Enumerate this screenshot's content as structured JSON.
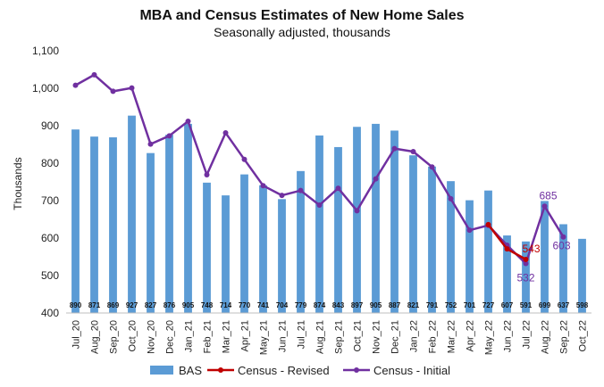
{
  "chart_data": {
    "type": "bar",
    "title": "MBA and Census Estimates of New Home Sales",
    "subtitle": "Seasonally adjusted, thousands",
    "ylabel": "Thousands",
    "xlabel": "",
    "ylim": [
      400,
      1100
    ],
    "yticks": [
      "400",
      "500",
      "600",
      "700",
      "800",
      "900",
      "1,000",
      "1,100"
    ],
    "grid": false,
    "legend_position": "bottom",
    "categories": [
      "Jul_20",
      "Aug_20",
      "Sep_20",
      "Oct_20",
      "Nov_20",
      "Dec_20",
      "Jan_21",
      "Feb_21",
      "Mar_21",
      "Apr_21",
      "May_21",
      "Jun_21",
      "Jul_21",
      "Aug_21",
      "Sep_21",
      "Oct_21",
      "Nov_21",
      "Dec_21",
      "Jan_22",
      "Feb_22",
      "Mar_22",
      "Apr_22",
      "May_22",
      "Jun_22",
      "Jul_22",
      "Aug_22",
      "Sep_22",
      "Oct_22"
    ],
    "series": [
      {
        "name": "BAS",
        "kind": "bar",
        "color": "#5b9bd5",
        "values": [
          890,
          871,
          869,
          927,
          827,
          876,
          905,
          748,
          714,
          770,
          741,
          704,
          779,
          874,
          843,
          897,
          905,
          887,
          821,
          791,
          752,
          701,
          727,
          607,
          591,
          699,
          637,
          598
        ]
      },
      {
        "name": "Census - Revised",
        "kind": "line",
        "color": "#c00000",
        "values": [
          null,
          null,
          null,
          null,
          null,
          null,
          null,
          null,
          null,
          null,
          null,
          null,
          null,
          null,
          null,
          null,
          null,
          null,
          null,
          null,
          null,
          null,
          636,
          571,
          543,
          null,
          null,
          null
        ]
      },
      {
        "name": "Census - Initial",
        "kind": "line",
        "color": "#7030a0",
        "values": [
          1008,
          1036,
          992,
          1001,
          851,
          873,
          912,
          769,
          881,
          810,
          740,
          714,
          727,
          688,
          733,
          673,
          758,
          839,
          831,
          790,
          705,
          621,
          634,
          581,
          532,
          685,
          603,
          null
        ]
      }
    ],
    "annotations": [
      {
        "text": "543",
        "category": "Jul_22",
        "value": 543,
        "color": "#c00000"
      },
      {
        "text": "532",
        "category": "Jul_22",
        "value": 532,
        "color": "#7030a0"
      },
      {
        "text": "685",
        "category": "Aug_22",
        "value": 685,
        "color": "#7030a0"
      },
      {
        "text": "603",
        "category": "Sep_22",
        "value": 603,
        "color": "#7030a0"
      }
    ]
  }
}
